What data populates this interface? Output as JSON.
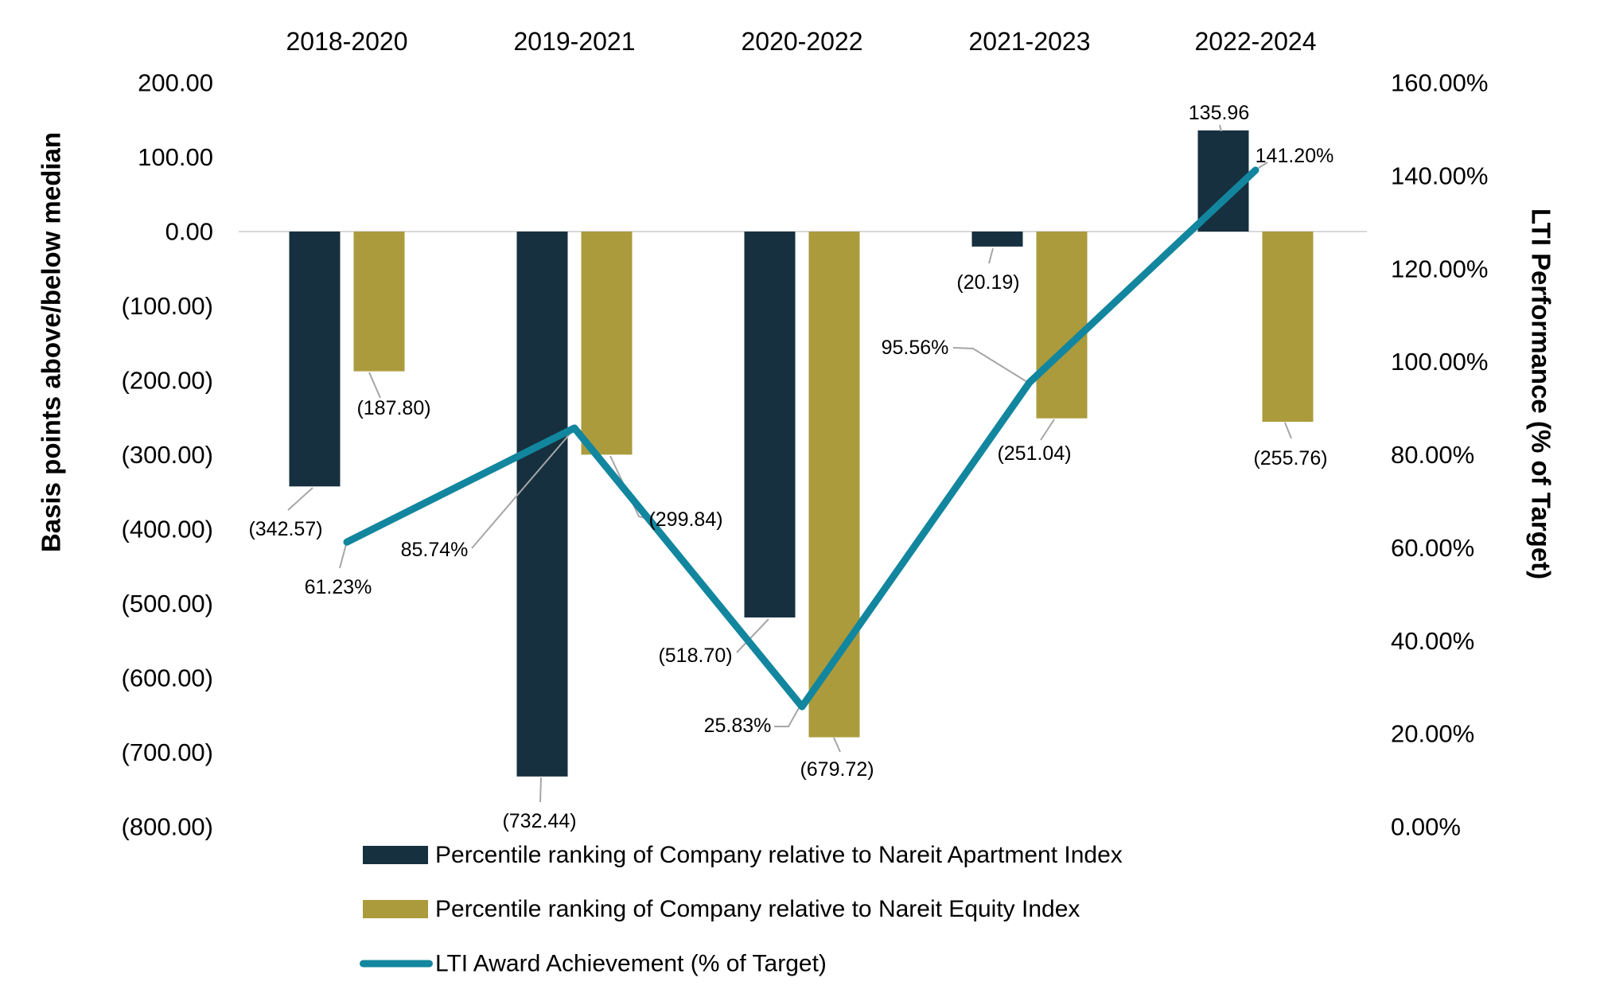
{
  "chart_data": {
    "type": "bar",
    "subtype": "grouped-bar-with-line-combo",
    "categories": [
      "2018-2020",
      "2019-2021",
      "2020-2022",
      "2021-2023",
      "2022-2024"
    ],
    "series": [
      {
        "name": "Percentile ranking of Company relative to Nareit Apartment Index",
        "type": "bar",
        "axis": "left",
        "color": "#16303F",
        "values": [
          -342.57,
          -732.44,
          -518.7,
          -20.19,
          135.96
        ],
        "labels": [
          "(342.57)",
          "(732.44)",
          "(518.70)",
          "(20.19)",
          "135.96"
        ]
      },
      {
        "name": "Percentile ranking of Company relative to Nareit Equity Index",
        "type": "bar",
        "axis": "left",
        "color": "#AB9B3D",
        "values": [
          -187.8,
          -299.84,
          -679.72,
          -251.04,
          -255.76
        ],
        "labels": [
          "(187.80)",
          "(299.84)",
          "(679.72)",
          "(251.04)",
          "(255.76)"
        ]
      },
      {
        "name": "LTI Award Achievement (% of Target)",
        "type": "line",
        "axis": "right",
        "color": "#12869E",
        "values": [
          61.23,
          85.74,
          25.83,
          95.56,
          141.2
        ],
        "labels": [
          "61.23%",
          "85.74%",
          "25.83%",
          "95.56%",
          "141.20%"
        ]
      }
    ],
    "left_axis": {
      "title": "Basis points above/below median",
      "min": -800,
      "max": 200,
      "tick_step": 100,
      "tick_labels": [
        "200.00",
        "100.00",
        "0.00",
        "(100.00)",
        "(200.00)",
        "(300.00)",
        "(400.00)",
        "(500.00)",
        "(600.00)",
        "(700.00)",
        "(800.00)"
      ]
    },
    "right_axis": {
      "title": "LTI Performance (% of Target)",
      "min": 0,
      "max": 160,
      "tick_step": 20,
      "tick_labels": [
        "160.00%",
        "140.00%",
        "120.00%",
        "100.00%",
        "80.00%",
        "60.00%",
        "40.00%",
        "20.00%",
        "0.00%"
      ]
    },
    "grid": "zero-baseline-only",
    "legend_position": "bottom-left",
    "colors": {
      "bar_apartment": "#16303F",
      "bar_equity": "#AB9B3D",
      "line_lti": "#12869E",
      "leader_line": "#A6A6A6",
      "zero_gridline": "#D9D9D9",
      "text": "#000000",
      "background": "#FFFFFF"
    }
  }
}
